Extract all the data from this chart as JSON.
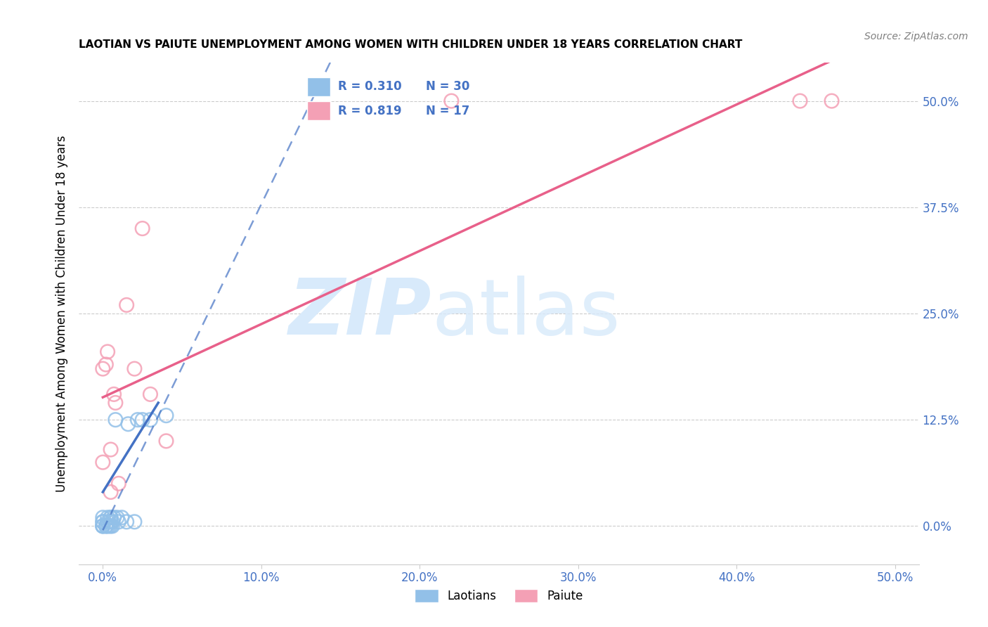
{
  "title": "LAOTIAN VS PAIUTE UNEMPLOYMENT AMONG WOMEN WITH CHILDREN UNDER 18 YEARS CORRELATION CHART",
  "source": "Source: ZipAtlas.com",
  "ylabel": "Unemployment Among Women with Children Under 18 years",
  "laotian_color": "#92C0E8",
  "paiute_color": "#F4A0B5",
  "laotian_line_color": "#4472C4",
  "paiute_line_color": "#E8608A",
  "tick_color": "#4472C4",
  "grid_color": "#CCCCCC",
  "watermark_color": "#D8EAFB",
  "watermark": "ZIPatlas",
  "legend_R_laotian": "R = 0.310",
  "legend_N_laotian": "N = 30",
  "legend_R_paiute": "R = 0.819",
  "legend_N_paiute": "N = 17",
  "laotian_x": [
    0.0,
    0.0,
    0.0,
    0.0,
    0.0,
    0.0,
    0.002,
    0.002,
    0.003,
    0.003,
    0.003,
    0.004,
    0.005,
    0.005,
    0.005,
    0.005,
    0.006,
    0.006,
    0.007,
    0.008,
    0.009,
    0.01,
    0.012,
    0.015,
    0.016,
    0.02,
    0.022,
    0.025,
    0.03,
    0.04
  ],
  "laotian_y": [
    0.0,
    0.0,
    0.0,
    0.005,
    0.005,
    0.01,
    0.0,
    0.0,
    0.0,
    0.005,
    0.01,
    0.0,
    0.0,
    0.005,
    0.01,
    0.01,
    0.0,
    0.005,
    0.01,
    0.125,
    0.01,
    0.005,
    0.01,
    0.005,
    0.12,
    0.005,
    0.125,
    0.125,
    0.125,
    0.13
  ],
  "paiute_x": [
    0.0,
    0.0,
    0.002,
    0.003,
    0.005,
    0.005,
    0.007,
    0.008,
    0.01,
    0.015,
    0.02,
    0.025,
    0.03,
    0.04,
    0.22,
    0.44,
    0.46
  ],
  "paiute_y": [
    0.075,
    0.185,
    0.19,
    0.205,
    0.04,
    0.09,
    0.155,
    0.145,
    0.05,
    0.26,
    0.185,
    0.35,
    0.155,
    0.1,
    0.5,
    0.5,
    0.5
  ],
  "xtick_vals": [
    0.0,
    0.1,
    0.2,
    0.3,
    0.4,
    0.5
  ],
  "xtick_labels": [
    "0.0%",
    "10.0%",
    "20.0%",
    "30.0%",
    "40.0%",
    "50.0%"
  ],
  "ytick_vals": [
    0.0,
    0.125,
    0.25,
    0.375,
    0.5
  ],
  "ytick_labels": [
    "0.0%",
    "12.5%",
    "25.0%",
    "37.5%",
    "50.0%"
  ],
  "xlim": [
    -0.015,
    0.515
  ],
  "ylim": [
    -0.045,
    0.545
  ]
}
